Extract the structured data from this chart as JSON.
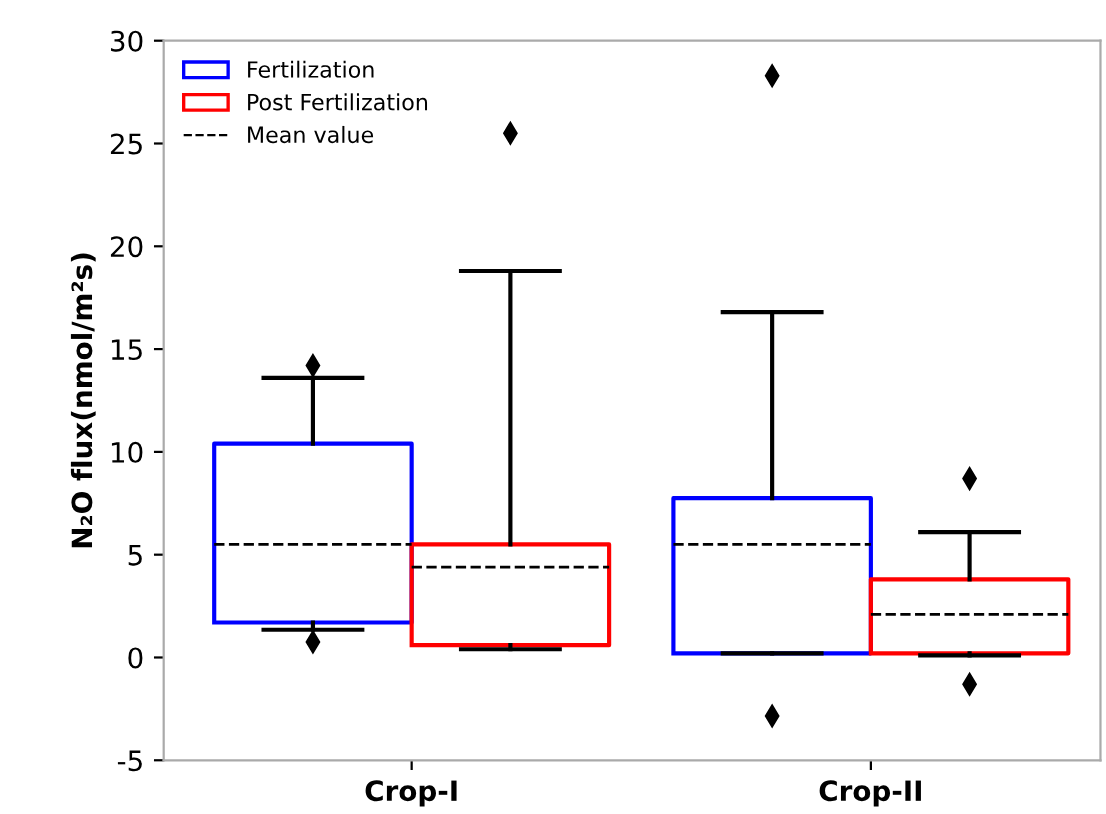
{
  "chart_data": {
    "type": "box",
    "ylabel": "N₂O flux(nmol/m²s)",
    "categories": [
      "Crop-I",
      "Crop-II"
    ],
    "ylim": [
      -5,
      30
    ],
    "yticks": [
      -5,
      0,
      5,
      10,
      15,
      20,
      25,
      30
    ],
    "grid": false,
    "legend": "top left",
    "series": [
      {
        "name": "Fertilization",
        "color": "#0000ff",
        "boxes": [
          {
            "low": 1.35,
            "q1": 1.7,
            "q3": 10.4,
            "high": 13.6,
            "mean": 5.5,
            "outliers": [
              14.2,
              0.75
            ]
          },
          {
            "low": 0.2,
            "q1": 0.2,
            "q3": 7.75,
            "high": 16.8,
            "mean": 5.5,
            "outliers": [
              28.3,
              -2.85
            ]
          }
        ]
      },
      {
        "name": "Post Fertilization",
        "color": "#ff0000",
        "boxes": [
          {
            "low": 0.4,
            "q1": 0.6,
            "q3": 5.5,
            "high": 18.8,
            "mean": 4.4,
            "outliers": [
              25.5
            ]
          },
          {
            "low": 0.1,
            "q1": 0.2,
            "q3": 3.8,
            "high": 6.1,
            "mean": 2.1,
            "outliers": [
              8.7,
              -1.3
            ]
          }
        ]
      },
      {
        "name": "Mean value",
        "type": "line",
        "color": "#000000",
        "line_style": "dashed",
        "values": [
          null,
          null
        ]
      }
    ]
  }
}
